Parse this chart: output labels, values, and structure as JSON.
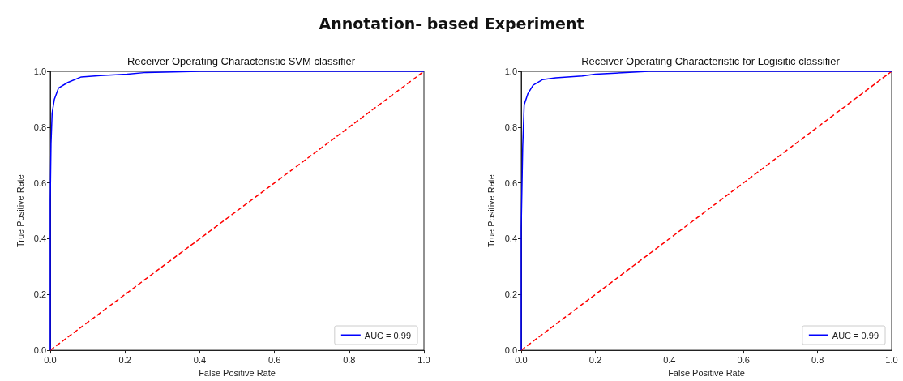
{
  "chart_data": [
    {
      "type": "line",
      "title": "Receiver Operating Characteristic SVM classifier",
      "xlabel": "False Positive Rate",
      "ylabel": "True Positive Rate",
      "annotations": [
        "Annotation- based Experiment"
      ],
      "xlim": [
        0,
        1
      ],
      "ylim": [
        0,
        1
      ],
      "xticks": [
        {
          "value": 0,
          "label": "0.0"
        },
        {
          "value": 0.2,
          "label": "0.2"
        },
        {
          "value": 0.4,
          "label": "0.4"
        },
        {
          "value": 0.6,
          "label": "0.6"
        },
        {
          "value": 0.8,
          "label": "0.8"
        },
        {
          "value": 1,
          "label": "1.0"
        }
      ],
      "yticks": [
        {
          "value": 0,
          "label": "0.0"
        },
        {
          "value": 0.2,
          "label": "0.2"
        },
        {
          "value": 0.4,
          "label": "0.4"
        },
        {
          "value": 0.6,
          "label": "0.6"
        },
        {
          "value": 0.8,
          "label": "0.8"
        },
        {
          "value": 1,
          "label": "1.0"
        }
      ],
      "grid": false,
      "legend": "bottom right",
      "marker": "none",
      "series": [
        {
          "name": "AUC = 0.99",
          "color": "#0000ff",
          "line_style": "solid",
          "x": [
            0,
            0,
            0.002,
            0.005,
            0.011,
            0.022,
            0.047,
            0.083,
            0.134,
            0.206,
            0.257,
            0.4,
            1
          ],
          "values": [
            0,
            0.54,
            0.74,
            0.85,
            0.9,
            0.94,
            0.96,
            0.98,
            0.985,
            0.99,
            0.996,
            1,
            1
          ]
        },
        {
          "color": "#ff0000",
          "line_style": "dashed",
          "x": [
            0,
            1
          ],
          "values": [
            0,
            1
          ]
        }
      ]
    },
    {
      "type": "line",
      "title": "Receiver Operating Characteristic for Logisitic classifier",
      "xlabel": "False Positive Rate",
      "ylabel": "True Positive Rate",
      "xlim": [
        0,
        1
      ],
      "ylim": [
        0,
        1
      ],
      "xticks": [
        {
          "value": 0,
          "label": "0.0"
        },
        {
          "value": 0.2,
          "label": "0.2"
        },
        {
          "value": 0.4,
          "label": "0.4"
        },
        {
          "value": 0.6,
          "label": "0.6"
        },
        {
          "value": 0.8,
          "label": "0.8"
        },
        {
          "value": 1,
          "label": "1.0"
        }
      ],
      "yticks": [
        {
          "value": 0,
          "label": "0.0"
        },
        {
          "value": 0.2,
          "label": "0.2"
        },
        {
          "value": 0.4,
          "label": "0.4"
        },
        {
          "value": 0.6,
          "label": "0.6"
        },
        {
          "value": 0.8,
          "label": "0.8"
        },
        {
          "value": 1,
          "label": "1.0"
        }
      ],
      "grid": false,
      "legend": "bottom right",
      "marker": "none",
      "series": [
        {
          "name": "AUC = 0.99",
          "color": "#0000ff",
          "line_style": "solid",
          "x": [
            0,
            0,
            0.004,
            0.008,
            0.018,
            0.032,
            0.057,
            0.093,
            0.165,
            0.2,
            0.272,
            0.344,
            1
          ],
          "values": [
            0,
            0.44,
            0.73,
            0.88,
            0.92,
            0.95,
            0.97,
            0.977,
            0.983,
            0.99,
            0.995,
            1,
            1
          ]
        },
        {
          "color": "#ff0000",
          "line_style": "dashed",
          "x": [
            0,
            1
          ],
          "values": [
            0,
            1
          ]
        }
      ]
    }
  ]
}
